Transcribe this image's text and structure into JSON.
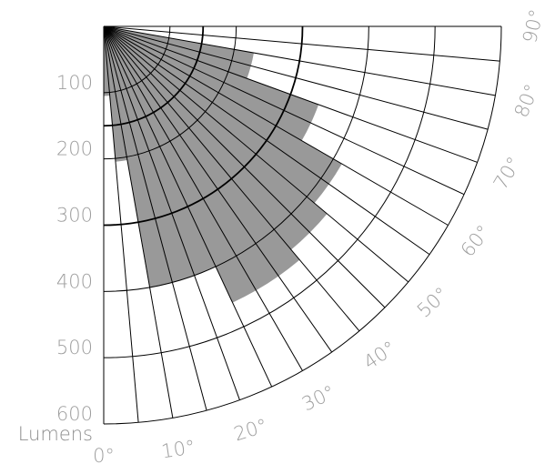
{
  "chart_data": {
    "type": "polar-area",
    "title": "",
    "radial_axis": {
      "label": "Lumens",
      "ticks": [
        100,
        200,
        300,
        400,
        500,
        600
      ],
      "range": [
        0,
        600
      ],
      "emphasized_rings": [
        150,
        300
      ]
    },
    "angular_axis": {
      "ticks": [
        0,
        10,
        20,
        30,
        40,
        50,
        60,
        70,
        80,
        90
      ],
      "tick_labels": [
        "0°",
        "10°",
        "20°",
        "30°",
        "40°",
        "50°",
        "60°",
        "70°",
        "80°",
        "90°"
      ],
      "range_deg": [
        0,
        90
      ],
      "sector_step_deg": 10,
      "spoke_step_deg": 5
    },
    "series": [
      {
        "values": [
          {
            "from": 0,
            "to": 5,
            "value": 105
          },
          {
            "from": 5,
            "to": 10,
            "value": 205
          },
          {
            "from": 10,
            "to": 15,
            "value": 400
          },
          {
            "from": 15,
            "to": 20,
            "value": 400
          },
          {
            "from": 20,
            "to": 25,
            "value": 400
          },
          {
            "from": 25,
            "to": 30,
            "value": 460
          },
          {
            "from": 30,
            "to": 35,
            "value": 460
          },
          {
            "from": 35,
            "to": 40,
            "value": 460
          },
          {
            "from": 40,
            "to": 45,
            "value": 440
          },
          {
            "from": 45,
            "to": 50,
            "value": 440
          },
          {
            "from": 50,
            "to": 55,
            "value": 415
          },
          {
            "from": 55,
            "to": 60,
            "value": 415
          },
          {
            "from": 60,
            "to": 65,
            "value": 345
          },
          {
            "from": 65,
            "to": 70,
            "value": 345
          },
          {
            "from": 70,
            "to": 75,
            "value": 230
          },
          {
            "from": 75,
            "to": 80,
            "value": 230
          },
          {
            "from": 80,
            "to": 85,
            "value": 0
          },
          {
            "from": 85,
            "to": 90,
            "value": 0
          }
        ]
      }
    ],
    "grid": true,
    "colors": {
      "fill": "#999999",
      "grid": "#000000",
      "tick_text": "#9e9e9e"
    }
  }
}
